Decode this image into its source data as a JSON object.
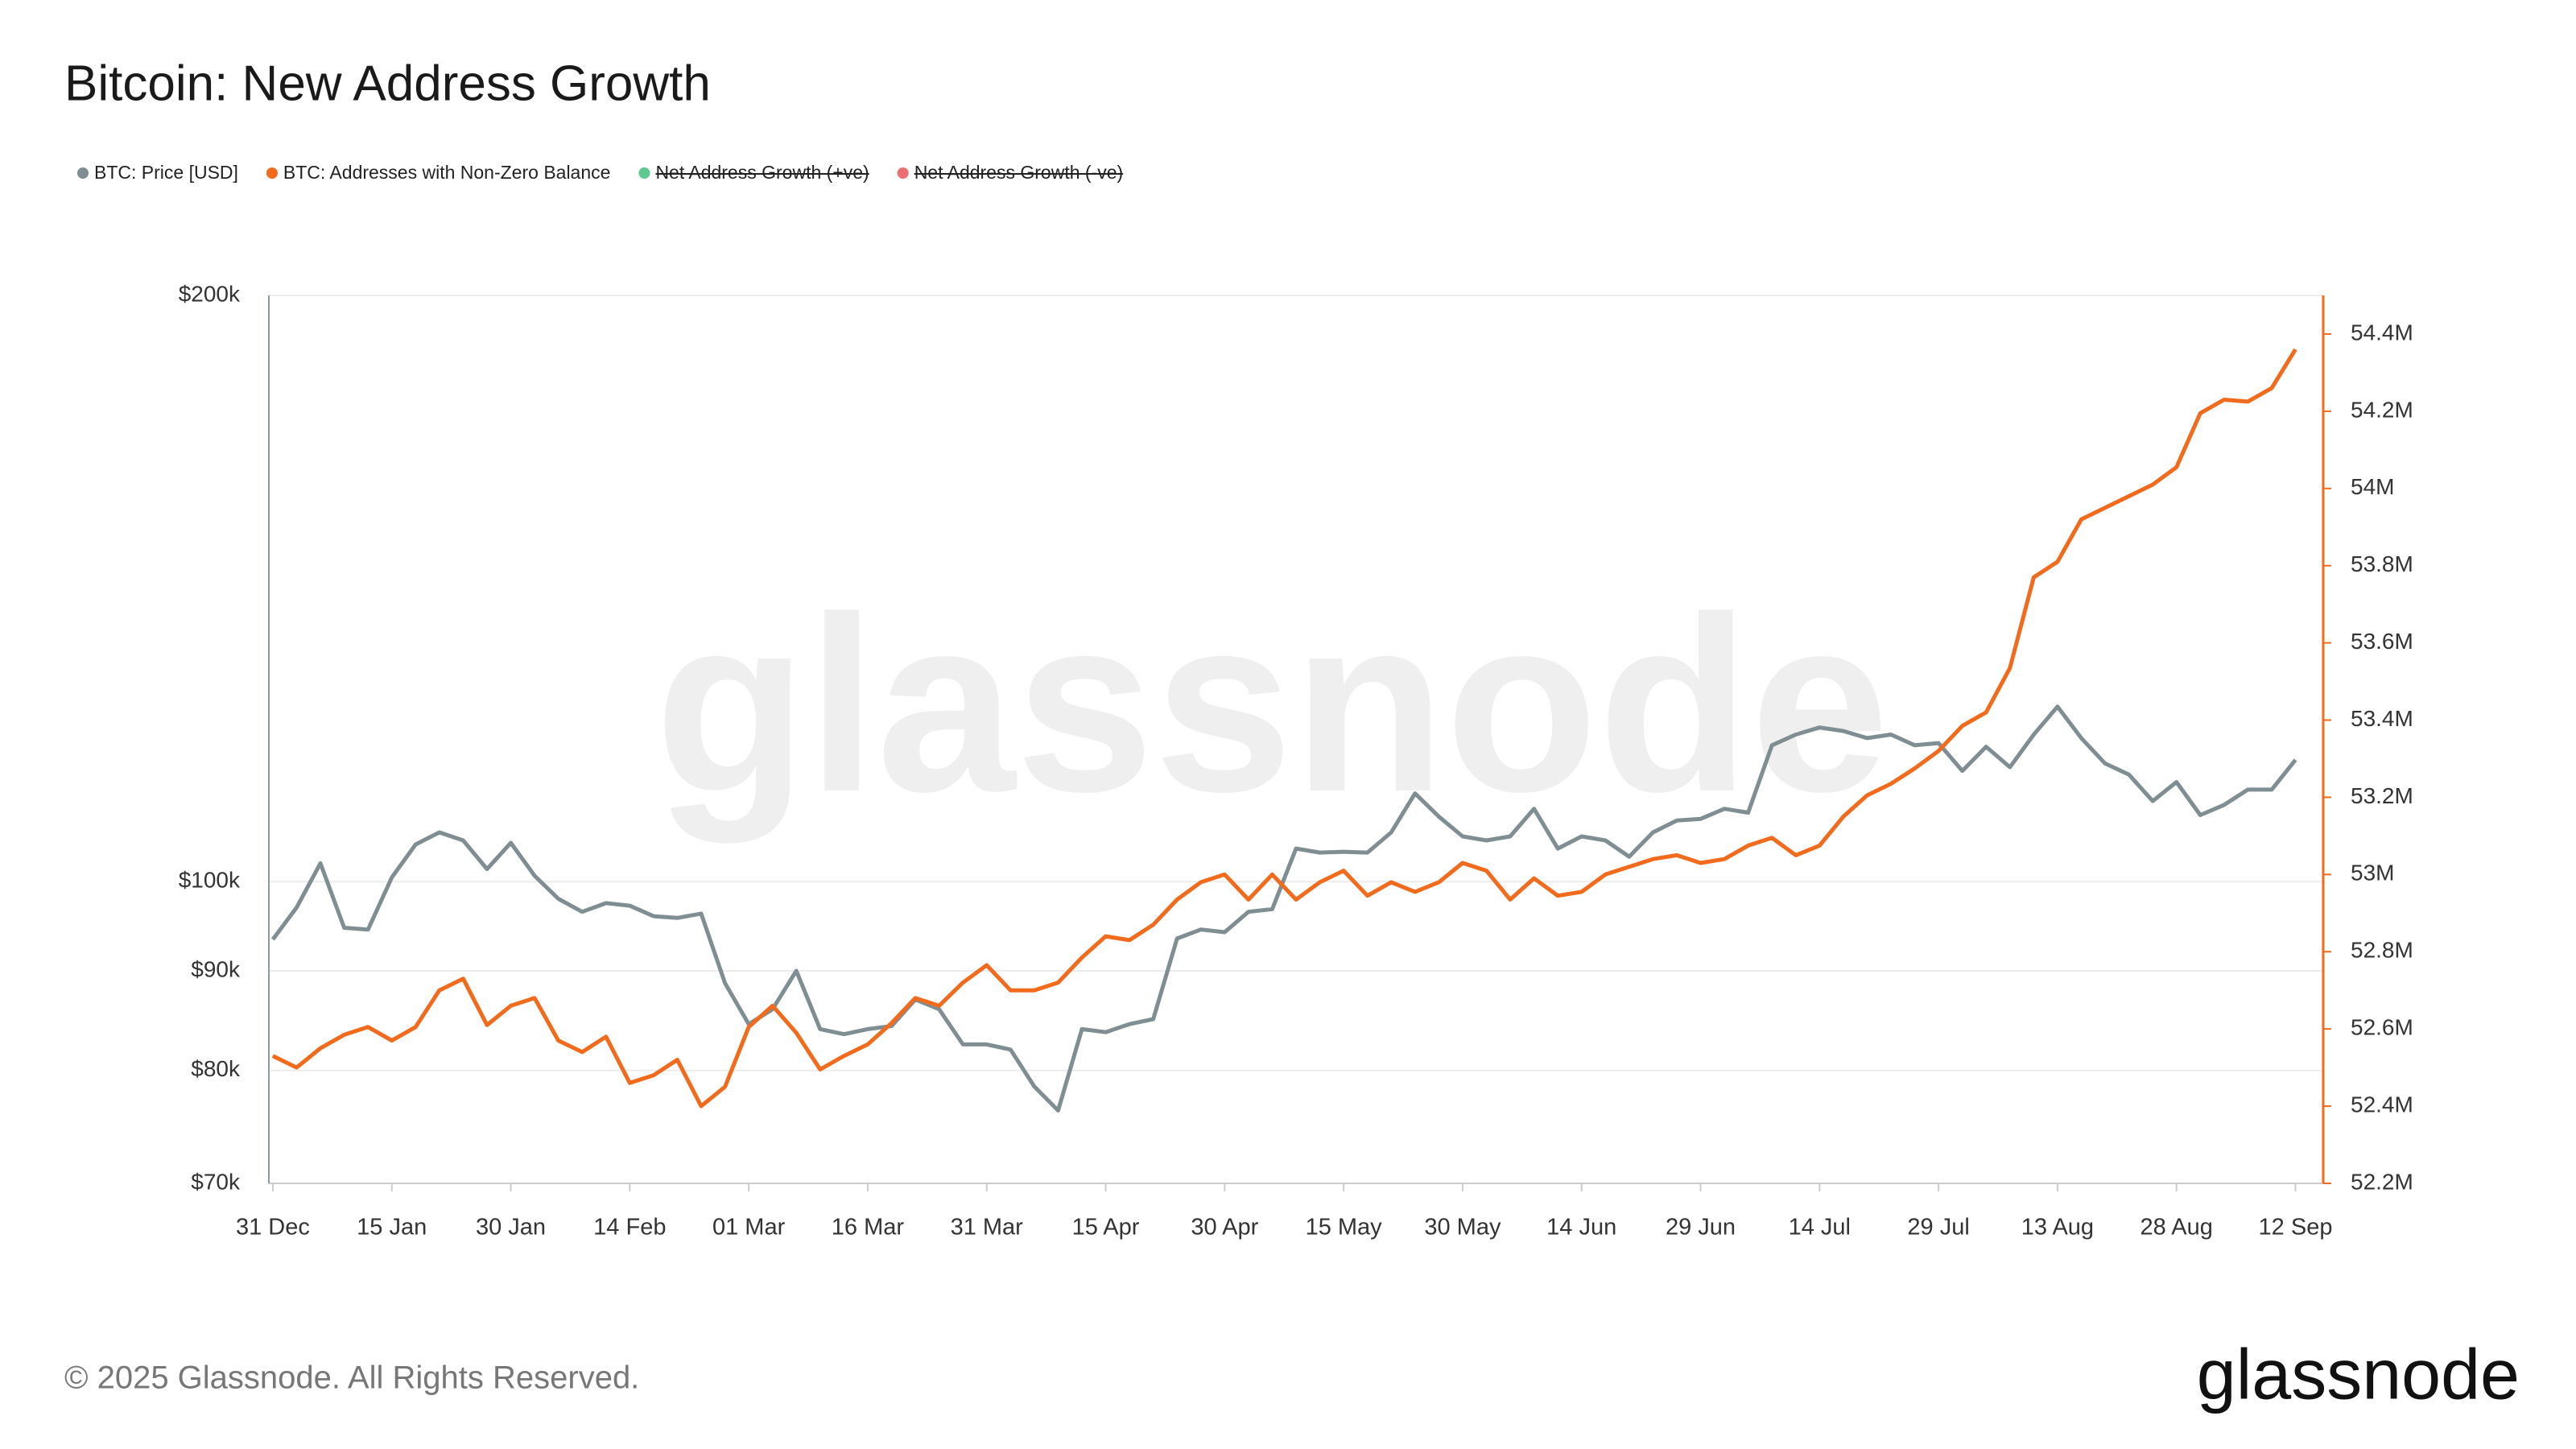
{
  "chart_data": {
    "type": "line",
    "title": "Bitcoin: New Address Growth",
    "watermark": "glassnode",
    "logo": "glassnode",
    "copyright": "© 2025 Glassnode. All Rights Reserved.",
    "x": [
      0,
      3,
      6,
      9,
      12,
      15,
      18,
      21,
      24,
      27,
      30,
      33,
      36,
      39,
      42,
      45,
      48,
      51,
      54,
      57,
      60,
      63,
      66,
      69,
      72,
      75,
      78,
      81,
      84,
      87,
      90,
      93,
      96,
      99,
      102,
      105,
      108,
      111,
      114,
      117,
      120,
      123,
      126,
      129,
      132,
      135,
      138,
      141,
      144,
      147,
      150,
      153,
      156,
      159,
      162,
      165,
      168,
      171,
      174,
      177,
      180,
      183,
      186,
      189,
      192,
      195,
      198,
      201,
      204,
      207,
      210,
      213,
      216,
      219,
      222,
      225,
      228,
      231,
      234,
      237,
      240,
      243,
      246,
      249,
      252,
      255
    ],
    "xlim": [
      -0.5,
      258.5
    ],
    "xticks": [
      {
        "value": 0,
        "label": "31 Dec"
      },
      {
        "value": 15,
        "label": "15 Jan"
      },
      {
        "value": 30,
        "label": "30 Jan"
      },
      {
        "value": 45,
        "label": "14 Feb"
      },
      {
        "value": 60,
        "label": "01 Mar"
      },
      {
        "value": 75,
        "label": "16 Mar"
      },
      {
        "value": 90,
        "label": "31 Mar"
      },
      {
        "value": 105,
        "label": "15 Apr"
      },
      {
        "value": 120,
        "label": "30 Apr"
      },
      {
        "value": 135,
        "label": "15 May"
      },
      {
        "value": 150,
        "label": "30 May"
      },
      {
        "value": 165,
        "label": "14 Jun"
      },
      {
        "value": 180,
        "label": "29 Jun"
      },
      {
        "value": 195,
        "label": "14 Jul"
      },
      {
        "value": 210,
        "label": "29 Jul"
      },
      {
        "value": 225,
        "label": "13 Aug"
      },
      {
        "value": 240,
        "label": "28 Aug"
      },
      {
        "value": 255,
        "label": "12 Sep"
      }
    ],
    "ylim": [
      70000,
      200000
    ],
    "ylog": true,
    "yticks": [
      {
        "value": 70000,
        "label": "$70k"
      },
      {
        "value": 80000,
        "label": "$80k"
      },
      {
        "value": 90000,
        "label": "$90k"
      },
      {
        "value": 100000,
        "label": "$100k"
      },
      {
        "value": 200000,
        "label": "$200k"
      }
    ],
    "y2lim": [
      52200000,
      54500000
    ],
    "y2ticks": [
      {
        "value": 52200000,
        "label": "52.2M"
      },
      {
        "value": 52400000,
        "label": "52.4M"
      },
      {
        "value": 52600000,
        "label": "52.6M"
      },
      {
        "value": 52800000,
        "label": "52.8M"
      },
      {
        "value": 53000000,
        "label": "53M"
      },
      {
        "value": 53200000,
        "label": "53.2M"
      },
      {
        "value": 53400000,
        "label": "53.4M"
      },
      {
        "value": 53600000,
        "label": "53.6M"
      },
      {
        "value": 53800000,
        "label": "53.8M"
      },
      {
        "value": 54000000,
        "label": "54M"
      },
      {
        "value": 54200000,
        "label": "54.2M"
      },
      {
        "value": 54400000,
        "label": "54.4M"
      }
    ],
    "grid": true,
    "series": [
      {
        "name": "BTC: Price [USD]",
        "color": "#7f8e93",
        "axis": "y",
        "values": [
          93400,
          97000,
          102200,
          94700,
          94500,
          100500,
          104500,
          106000,
          105000,
          101500,
          104700,
          100700,
          98000,
          96500,
          97500,
          97200,
          96000,
          95800,
          96300,
          88700,
          84500,
          86000,
          90000,
          84000,
          83500,
          84000,
          84300,
          87000,
          86000,
          82500,
          82500,
          82000,
          78500,
          76300,
          84000,
          83700,
          84500,
          85000,
          93500,
          94500,
          94200,
          96500,
          96800,
          104000,
          103500,
          103600,
          103500,
          106000,
          111000,
          108000,
          105500,
          105000,
          105500,
          109000,
          104000,
          105500,
          105000,
          103000,
          106000,
          107500,
          107700,
          109000,
          108500,
          117500,
          119000,
          120000,
          119500,
          118500,
          119000,
          117500,
          117800,
          114000,
          117300,
          114500,
          119000,
          123000,
          118500,
          115000,
          113500,
          110000,
          112500,
          108200,
          109500,
          111500,
          111500,
          115500
        ]
      },
      {
        "name": "BTC: Addresses with Non-Zero Balance",
        "color": "#f26a1b",
        "axis": "y2",
        "values": [
          52530000,
          52500000,
          52550000,
          52585000,
          52605000,
          52570000,
          52605000,
          52700000,
          52730000,
          52610000,
          52660000,
          52680000,
          52570000,
          52540000,
          52580000,
          52460000,
          52480000,
          52520000,
          52400000,
          52450000,
          52605000,
          52660000,
          52590000,
          52495000,
          52530000,
          52560000,
          52615000,
          52680000,
          52660000,
          52720000,
          52765000,
          52700000,
          52700000,
          52720000,
          52785000,
          52840000,
          52830000,
          52870000,
          52935000,
          52980000,
          53000000,
          52935000,
          53000000,
          52935000,
          52980000,
          53010000,
          52945000,
          52980000,
          52955000,
          52980000,
          53030000,
          53010000,
          52935000,
          52990000,
          52945000,
          52955000,
          53000000,
          53020000,
          53040000,
          53050000,
          53030000,
          53040000,
          53075000,
          53095000,
          53050000,
          53075000,
          53150000,
          53205000,
          53235000,
          53275000,
          53320000,
          53385000,
          53420000,
          53535000,
          53770000,
          53810000,
          53920000,
          53950000,
          53980000,
          54010000,
          54055000,
          54195000,
          54230000,
          54225000,
          54260000,
          54360000
        ]
      }
    ],
    "hidden_series": [
      {
        "name": "Net Address Growth (+ve)",
        "color": "#5cc98f"
      },
      {
        "name": "Net Address Growth (-ve)",
        "color": "#ee6f73"
      }
    ]
  }
}
